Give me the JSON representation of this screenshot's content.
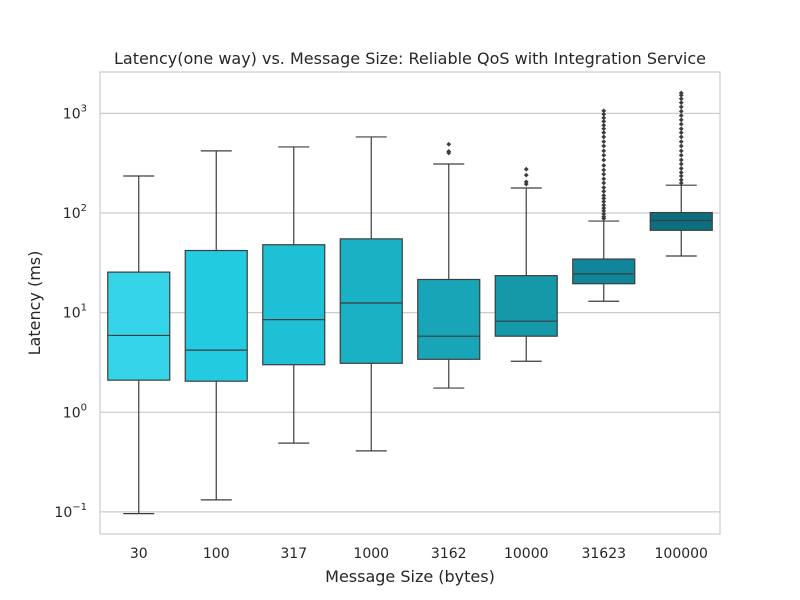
{
  "chart_data": {
    "type": "box",
    "title": "Latency(one way) vs. Message Size: Reliable QoS with Integration Service",
    "xlabel": "Message Size (bytes)",
    "ylabel": "Latency (ms)",
    "yscale": "log",
    "ylim": [
      0.06,
      2600
    ],
    "grid": "horizontal",
    "y_ticks": [
      {
        "value": 0.1,
        "base": "10",
        "exp": "−1"
      },
      {
        "value": 1,
        "base": "10",
        "exp": "0"
      },
      {
        "value": 10,
        "base": "10",
        "exp": "1"
      },
      {
        "value": 100,
        "base": "10",
        "exp": "2"
      },
      {
        "value": 1000,
        "base": "10",
        "exp": "3"
      }
    ],
    "categories": [
      "30",
      "100",
      "317",
      "1000",
      "3162",
      "10000",
      "31623",
      "100000"
    ],
    "boxes": [
      {
        "category": "30",
        "whisker_low": 0.096,
        "q1": 2.1,
        "median": 5.9,
        "q3": 25.5,
        "whisker_high": 235,
        "outliers": [],
        "color": "#35d4e9"
      },
      {
        "category": "100",
        "whisker_low": 0.132,
        "q1": 2.05,
        "median": 4.2,
        "q3": 42,
        "whisker_high": 420,
        "outliers": [],
        "color": "#22cbe0"
      },
      {
        "category": "317",
        "whisker_low": 0.49,
        "q1": 3.0,
        "median": 8.5,
        "q3": 48,
        "whisker_high": 460,
        "outliers": [],
        "color": "#1ec0d5"
      },
      {
        "category": "1000",
        "whisker_low": 0.41,
        "q1": 3.1,
        "median": 12.5,
        "q3": 55,
        "whisker_high": 580,
        "outliers": [],
        "color": "#1ab1c5"
      },
      {
        "category": "3162",
        "whisker_low": 1.75,
        "q1": 3.4,
        "median": 5.8,
        "q3": 21.5,
        "whisker_high": 310,
        "outliers": [
          400,
          415,
          490
        ],
        "color": "#18a5b8"
      },
      {
        "category": "10000",
        "whisker_low": 3.25,
        "q1": 5.8,
        "median": 8.2,
        "q3": 23.5,
        "whisker_high": 178,
        "outliers": [
          195,
          205,
          240,
          275
        ],
        "color": "#1598a8"
      },
      {
        "category": "31623",
        "whisker_low": 13,
        "q1": 19.5,
        "median": 24.5,
        "q3": 34.5,
        "whisker_high": 83,
        "outliers": [
          88,
          92,
          98,
          105,
          112,
          120,
          130,
          140,
          150,
          165,
          180,
          200,
          220,
          245,
          270,
          300,
          340,
          380,
          420,
          470,
          520,
          580,
          640,
          700,
          760,
          830,
          900,
          980,
          1060
        ],
        "color": "#11869a"
      },
      {
        "category": "100000",
        "whisker_low": 37,
        "q1": 67,
        "median": 84,
        "q3": 101,
        "whisker_high": 190,
        "outliers": [
          200,
          215,
          235,
          255,
          280,
          310,
          340,
          380,
          420,
          470,
          520,
          580,
          640,
          700,
          780,
          860,
          950,
          1050,
          1160,
          1280,
          1400,
          1520,
          1600
        ],
        "color": "#0c6f80"
      }
    ]
  }
}
